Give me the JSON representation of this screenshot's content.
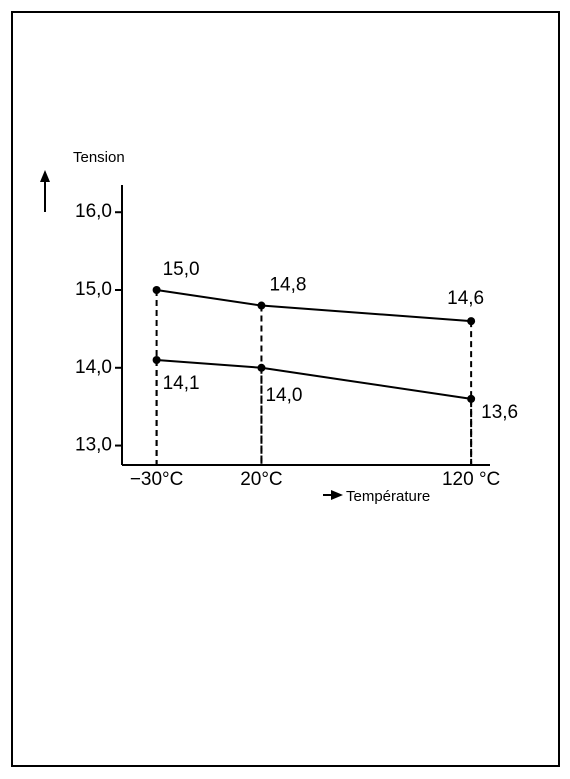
{
  "chart_data": {
    "type": "line",
    "y_label": "Tension",
    "x_label": "Température",
    "x": [
      -30,
      20,
      120
    ],
    "xticks": [
      {
        "value": -30,
        "label": "−30°C"
      },
      {
        "value": 20,
        "label": "20°C"
      },
      {
        "value": 120,
        "label": "120 °C"
      }
    ],
    "xlim": [
      -46.5,
      129
    ],
    "ylim": [
      12.75,
      16.35
    ],
    "yticks": [
      {
        "value": 13,
        "label": "13,0"
      },
      {
        "value": 14,
        "label": "14,0"
      },
      {
        "value": 15,
        "label": "15,0"
      },
      {
        "value": 16,
        "label": "16,0"
      }
    ],
    "series": [
      {
        "color": "#000000",
        "values": [
          15.0,
          14.8,
          14.6
        ],
        "value_labels": [
          "15,0",
          "14,8",
          "14,6"
        ]
      },
      {
        "color": "#000000",
        "values": [
          14.1,
          14.0,
          13.6
        ],
        "value_labels": [
          "14,1",
          "14,0",
          "13,6"
        ]
      }
    ]
  }
}
